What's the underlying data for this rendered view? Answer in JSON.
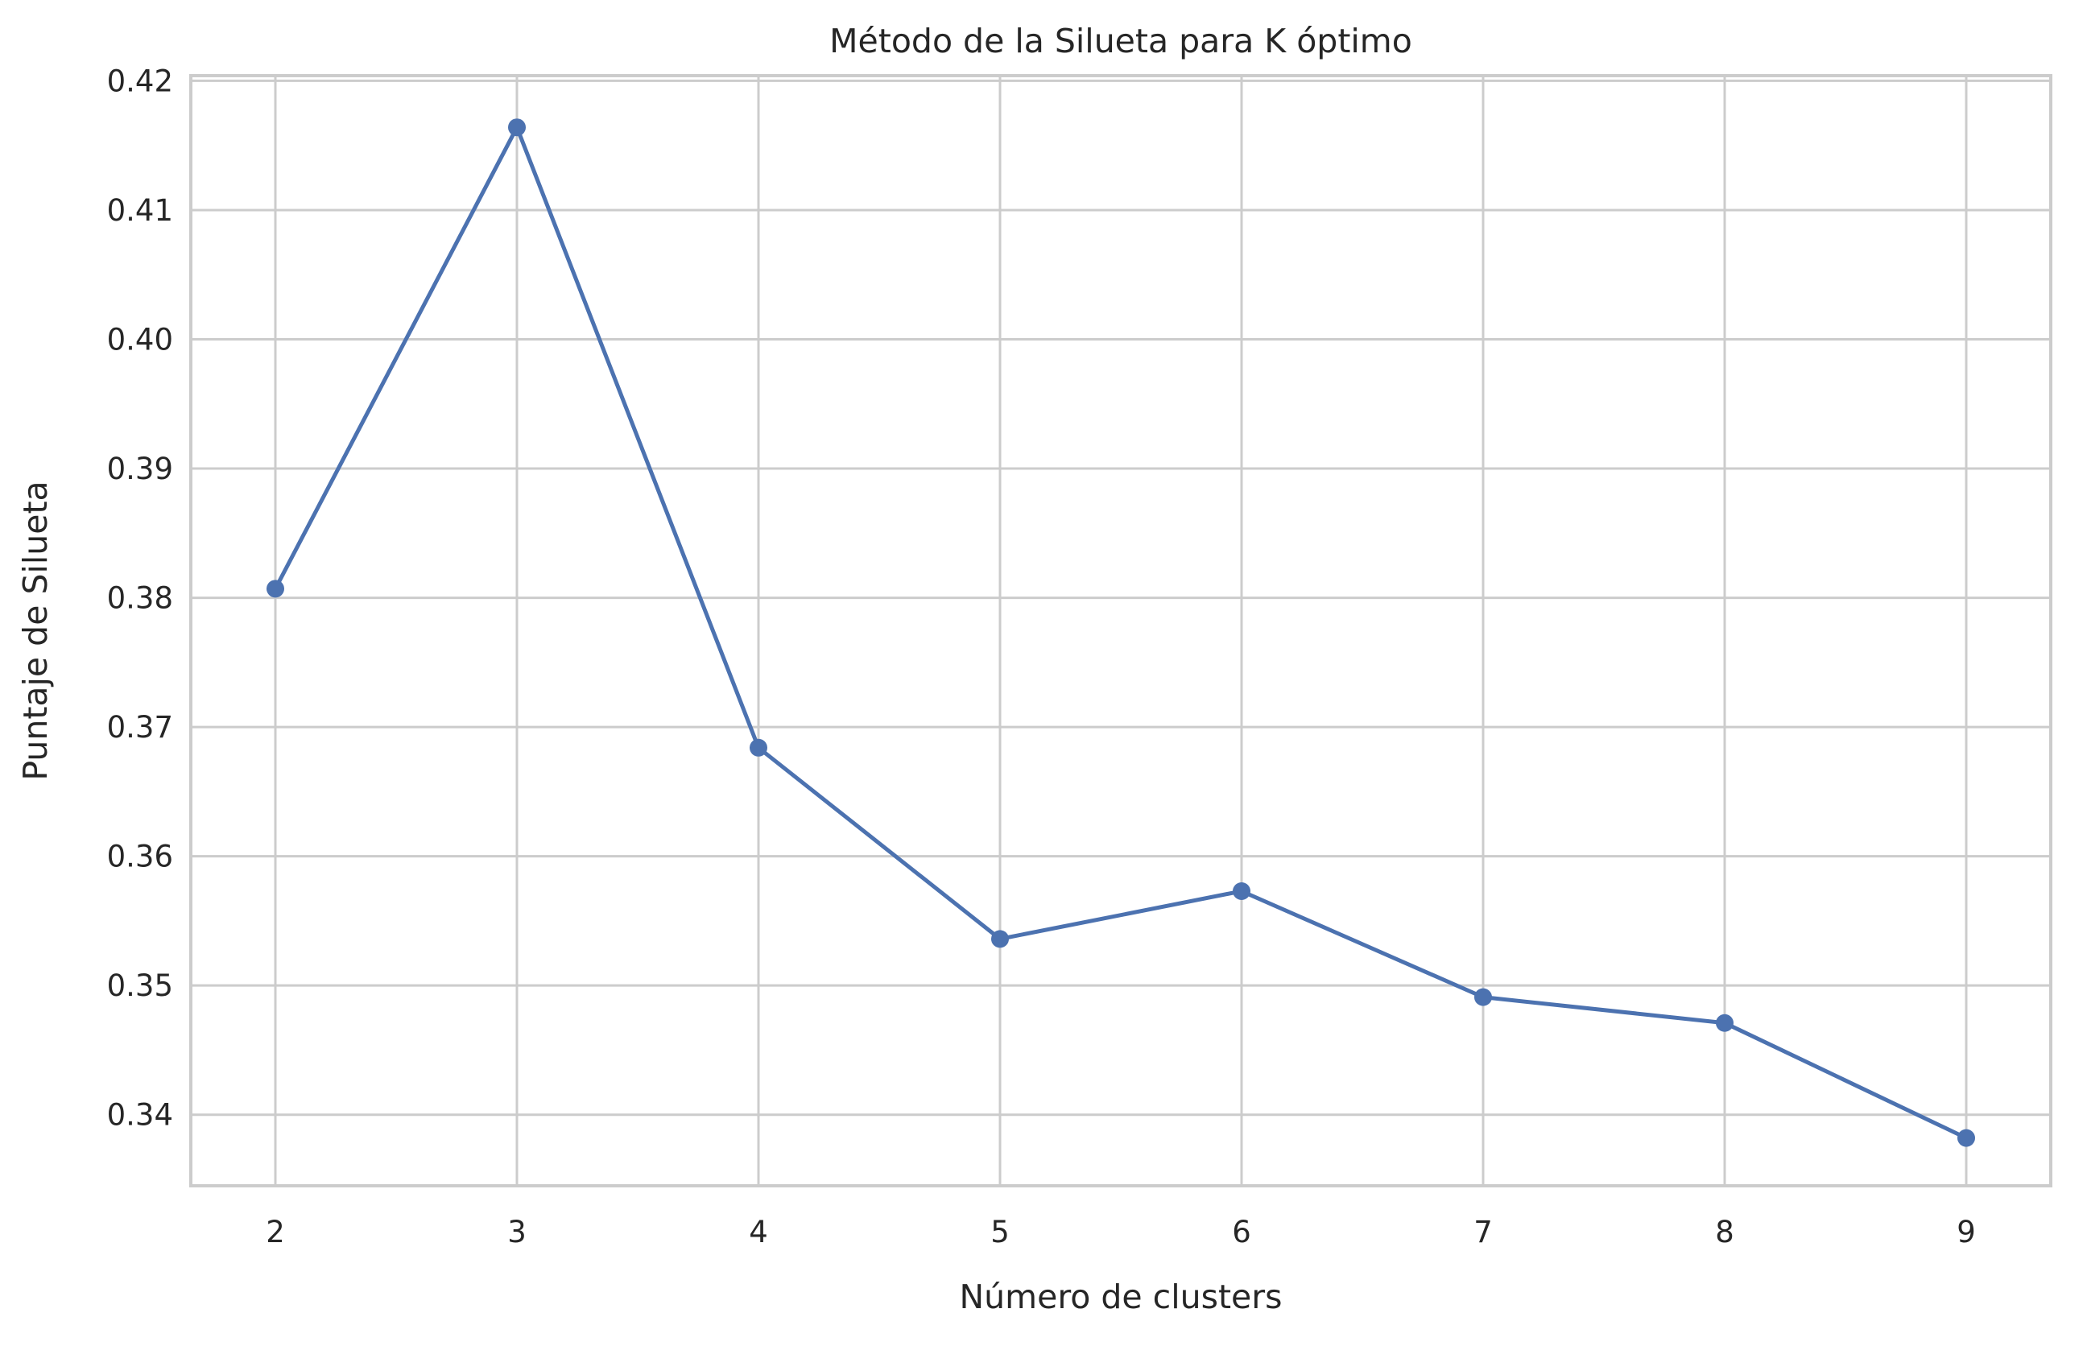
{
  "chart_data": {
    "type": "line",
    "title": "Método de la Silueta para K óptimo",
    "xlabel": "Número de clusters",
    "ylabel": "Puntaje de Silueta",
    "x": [
      2,
      3,
      4,
      5,
      6,
      7,
      8,
      9
    ],
    "series": [
      {
        "values": [
          0.3807,
          0.4164,
          0.3684,
          0.3536,
          0.3573,
          0.3491,
          0.3471,
          0.3382
        ]
      }
    ],
    "xlim": [
      1.65,
      9.35
    ],
    "ylim": [
      0.3345,
      0.4204
    ],
    "xticks": [
      "2",
      "3",
      "4",
      "5",
      "6",
      "7",
      "8",
      "9"
    ],
    "yticks": [
      "0.34",
      "0.35",
      "0.36",
      "0.37",
      "0.38",
      "0.39",
      "0.40",
      "0.41",
      "0.42"
    ],
    "grid": true,
    "line_color": "#4c72b0",
    "grid_color": "#cccccc"
  }
}
